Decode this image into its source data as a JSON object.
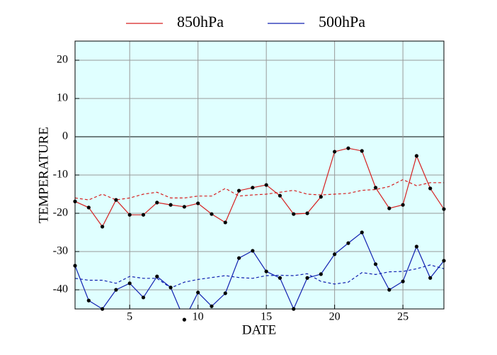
{
  "chart_data": {
    "type": "line",
    "x_label": "DATE",
    "y_label": "TEMPERATURE",
    "x": [
      1,
      2,
      3,
      4,
      5,
      6,
      7,
      8,
      9,
      10,
      11,
      12,
      13,
      14,
      15,
      16,
      17,
      18,
      19,
      20,
      21,
      22,
      23,
      24,
      25,
      26,
      27,
      28
    ],
    "xlim": [
      1,
      28
    ],
    "xticks": [
      5,
      10,
      15,
      20,
      25
    ],
    "ylim": [
      -45,
      25
    ],
    "yticks": [
      -40,
      -30,
      -20,
      -10,
      0,
      10,
      20
    ],
    "grid": true,
    "background": "#e0ffff",
    "legend": "top",
    "series": [
      {
        "name": "850hPa",
        "color": "#d62020",
        "markers": true,
        "values": [
          -16.9,
          -18.5,
          -23.5,
          -16.5,
          -20.4,
          -20.4,
          -17.2,
          -17.8,
          -18.3,
          -17.4,
          -20.2,
          -22.4,
          -14.1,
          -13.3,
          -12.6,
          -15.4,
          -20.2,
          -20,
          -15.7,
          -3.9,
          -3.0,
          -3.7,
          -13.3,
          -18.7,
          -17.8,
          -5.0,
          -13.5,
          -18.9
        ]
      },
      {
        "name": "500hPa",
        "color": "#1020b0",
        "markers": true,
        "values": [
          -33.7,
          -42.8,
          -45,
          -40,
          -38.3,
          -42,
          -36.5,
          -39.4,
          -47.8,
          -40.7,
          -44.3,
          -40.9,
          -31.7,
          -29.8,
          -35.2,
          -36.9,
          -45,
          -36.9,
          -35.9,
          -30.7,
          -27.8,
          -25,
          -33.3,
          -40,
          -37.8,
          -28.7,
          -36.9,
          -32.4
        ]
      },
      {
        "color": "#d62020",
        "dashed": true,
        "values": [
          -16,
          -16.5,
          -15,
          -16.5,
          -16,
          -15,
          -14.5,
          -16,
          -16,
          -15.5,
          -15.5,
          -13.5,
          -15.5,
          -15.2,
          -15,
          -14.5,
          -14,
          -15,
          -15.2,
          -15,
          -14.8,
          -14,
          -13.8,
          -13,
          -11.2,
          -12.8,
          -12,
          -12
        ]
      },
      {
        "color": "#1020b0",
        "dashed": true,
        "values": [
          -37,
          -37.5,
          -37.5,
          -38.3,
          -36.5,
          -37,
          -37,
          -39.5,
          -38,
          -37.3,
          -36.8,
          -36.3,
          -36.8,
          -37,
          -36.3,
          -36.2,
          -36.3,
          -35.8,
          -37.8,
          -38.5,
          -38,
          -35.5,
          -36,
          -35.3,
          -35.2,
          -34.5,
          -33.5,
          -34.5
        ]
      }
    ]
  }
}
